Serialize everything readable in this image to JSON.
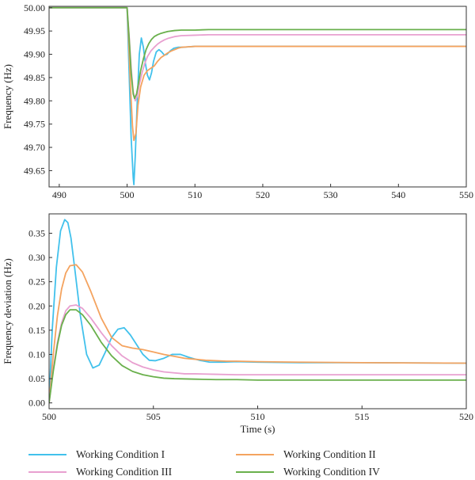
{
  "chart_data": [
    {
      "type": "line",
      "title": "",
      "xlabel": "",
      "ylabel": "Frequency (Hz)",
      "xlim": [
        488.5,
        550
      ],
      "ylim": [
        49.615,
        50.003
      ],
      "xticks": [
        490,
        500,
        510,
        520,
        530,
        540,
        550
      ],
      "yticks": [
        49.65,
        49.7,
        49.75,
        49.8,
        49.85,
        49.9,
        49.95,
        50.0
      ],
      "ytick_labels": [
        "49.65",
        "49.70",
        "49.75",
        "49.80",
        "49.85",
        "49.90",
        "49.95",
        "50.00"
      ],
      "grid": false,
      "series": [
        {
          "name": "Working Condition I",
          "color": "#41c1ec",
          "x": [
            488.5,
            500,
            500.3,
            500.6,
            500.9,
            501.0,
            501.2,
            501.5,
            501.8,
            502.1,
            502.4,
            502.7,
            503.0,
            503.3,
            503.6,
            503.9,
            504.3,
            504.7,
            505.1,
            505.5,
            505.9,
            506.4,
            506.9,
            507.5,
            508.2,
            509.0,
            510,
            512,
            515,
            520,
            530,
            550
          ],
          "y": [
            50.0,
            50.0,
            49.86,
            49.72,
            49.635,
            49.62,
            49.68,
            49.8,
            49.9,
            49.935,
            49.915,
            49.88,
            49.855,
            49.845,
            49.86,
            49.885,
            49.905,
            49.91,
            49.905,
            49.898,
            49.9,
            49.908,
            49.913,
            49.915,
            49.915,
            49.916,
            49.917,
            49.917,
            49.917,
            49.917,
            49.917,
            49.917
          ]
        },
        {
          "name": "Working Condition II",
          "color": "#f4a35f",
          "x": [
            488.5,
            500,
            500.2,
            500.5,
            500.8,
            501.0,
            501.3,
            501.6,
            502.0,
            502.5,
            503.0,
            503.5,
            504.0,
            504.5,
            505.0,
            505.5,
            506.0,
            506.5,
            507.0,
            507.5,
            508.0,
            509.0,
            510,
            512,
            515,
            520,
            530,
            550
          ],
          "y": [
            50.0,
            50.0,
            49.94,
            49.83,
            49.745,
            49.715,
            49.73,
            49.79,
            49.83,
            49.855,
            49.865,
            49.87,
            49.875,
            49.885,
            49.893,
            49.898,
            49.903,
            49.907,
            49.91,
            49.913,
            49.915,
            49.916,
            49.917,
            49.917,
            49.917,
            49.917,
            49.917,
            49.917
          ]
        },
        {
          "name": "Working Condition III",
          "color": "#e8a0d0",
          "x": [
            488.5,
            500,
            500.3,
            500.6,
            500.9,
            501.2,
            501.5,
            501.8,
            502.2,
            502.6,
            503.0,
            503.5,
            504.0,
            504.5,
            505.0,
            505.5,
            506.0,
            507.0,
            508.0,
            510,
            512,
            515,
            520,
            530,
            550
          ],
          "y": [
            50.0,
            50.0,
            49.94,
            49.87,
            49.82,
            49.8,
            49.81,
            49.835,
            49.86,
            49.88,
            49.895,
            49.907,
            49.915,
            49.922,
            49.927,
            49.931,
            49.934,
            49.938,
            49.94,
            49.941,
            49.942,
            49.942,
            49.942,
            49.942,
            49.942
          ]
        },
        {
          "name": "Working Condition IV",
          "color": "#6ab04c",
          "x": [
            488.5,
            500,
            500.3,
            500.6,
            500.9,
            501.1,
            501.4,
            501.7,
            502.0,
            502.4,
            502.8,
            503.2,
            503.6,
            504.0,
            504.5,
            505.0,
            505.5,
            506.0,
            507.0,
            508.0,
            510,
            512,
            515,
            520,
            530,
            550
          ],
          "y": [
            50.0,
            50.0,
            49.935,
            49.86,
            49.815,
            49.805,
            49.815,
            49.84,
            49.865,
            49.89,
            49.91,
            49.923,
            49.932,
            49.938,
            49.942,
            49.945,
            49.947,
            49.949,
            49.951,
            49.952,
            49.952,
            49.953,
            49.953,
            49.953,
            49.953,
            49.953
          ]
        }
      ]
    },
    {
      "type": "line",
      "title": "",
      "xlabel": "Time (s)",
      "ylabel": "Frequency deviation (Hz)",
      "xlim": [
        500,
        520
      ],
      "ylim": [
        -0.012,
        0.39
      ],
      "xticks": [
        500,
        505,
        510,
        515,
        520
      ],
      "yticks": [
        0.0,
        0.05,
        0.1,
        0.15,
        0.2,
        0.25,
        0.3,
        0.35
      ],
      "ytick_labels": [
        "0.00",
        "0.05",
        "0.10",
        "0.15",
        "0.20",
        "0.25",
        "0.30",
        "0.35"
      ],
      "grid": false,
      "series": [
        {
          "name": "Working Condition I",
          "color": "#41c1ec",
          "x": [
            500,
            500.15,
            500.35,
            500.55,
            500.75,
            500.9,
            501.05,
            501.25,
            501.5,
            501.8,
            502.1,
            502.4,
            502.7,
            503.0,
            503.3,
            503.6,
            503.9,
            504.2,
            504.5,
            504.8,
            505.1,
            505.5,
            505.9,
            506.3,
            506.7,
            507.2,
            507.7,
            508.3,
            509.0,
            510.0,
            512.0,
            515.0,
            520.0
          ],
          "y": [
            0.0,
            0.15,
            0.28,
            0.355,
            0.378,
            0.372,
            0.34,
            0.27,
            0.18,
            0.1,
            0.072,
            0.078,
            0.105,
            0.135,
            0.152,
            0.155,
            0.14,
            0.12,
            0.1,
            0.088,
            0.087,
            0.092,
            0.1,
            0.1,
            0.094,
            0.088,
            0.084,
            0.084,
            0.085,
            0.084,
            0.083,
            0.083,
            0.082
          ]
        },
        {
          "name": "Working Condition II",
          "color": "#f4a35f",
          "x": [
            500,
            500.2,
            500.4,
            500.6,
            500.8,
            501.0,
            501.3,
            501.6,
            502.0,
            502.5,
            503.0,
            503.5,
            504.0,
            504.5,
            505.0,
            505.5,
            506.0,
            506.5,
            507.0,
            507.5,
            508.0,
            508.5,
            509.0,
            510.0,
            512.0,
            515.0,
            520.0
          ],
          "y": [
            0.0,
            0.1,
            0.18,
            0.235,
            0.268,
            0.283,
            0.285,
            0.27,
            0.23,
            0.175,
            0.135,
            0.118,
            0.113,
            0.11,
            0.105,
            0.1,
            0.096,
            0.092,
            0.09,
            0.088,
            0.087,
            0.086,
            0.086,
            0.085,
            0.084,
            0.083,
            0.082
          ]
        },
        {
          "name": "Working Condition III",
          "color": "#e8a0d0",
          "x": [
            500,
            500.2,
            500.4,
            500.6,
            500.8,
            501.0,
            501.3,
            501.6,
            502.0,
            502.5,
            503.0,
            503.5,
            504.0,
            504.5,
            505.0,
            505.5,
            506.0,
            506.5,
            507.0,
            508.0,
            509.0,
            510.0,
            512.0,
            515.0,
            520.0
          ],
          "y": [
            0.0,
            0.07,
            0.125,
            0.165,
            0.19,
            0.2,
            0.202,
            0.195,
            0.175,
            0.145,
            0.118,
            0.097,
            0.083,
            0.074,
            0.068,
            0.064,
            0.062,
            0.06,
            0.06,
            0.059,
            0.058,
            0.058,
            0.058,
            0.058,
            0.058
          ]
        },
        {
          "name": "Working Condition IV",
          "color": "#6ab04c",
          "x": [
            500,
            500.2,
            500.4,
            500.6,
            500.8,
            501.0,
            501.3,
            501.6,
            502.0,
            502.5,
            503.0,
            503.5,
            504.0,
            504.5,
            505.0,
            505.5,
            506.0,
            507.0,
            508.0,
            509.0,
            510.0,
            512.0,
            515.0,
            520.0
          ],
          "y": [
            0.0,
            0.065,
            0.12,
            0.16,
            0.182,
            0.192,
            0.192,
            0.182,
            0.16,
            0.125,
            0.097,
            0.077,
            0.065,
            0.058,
            0.054,
            0.051,
            0.05,
            0.049,
            0.048,
            0.048,
            0.047,
            0.047,
            0.047,
            0.047
          ]
        }
      ]
    }
  ],
  "legend": {
    "items": [
      {
        "label": "Working Condition I",
        "color": "#41c1ec"
      },
      {
        "label": "Working Condition II",
        "color": "#f4a35f"
      },
      {
        "label": "Working Condition III",
        "color": "#e8a0d0"
      },
      {
        "label": "Working Condition IV",
        "color": "#6ab04c"
      }
    ]
  }
}
